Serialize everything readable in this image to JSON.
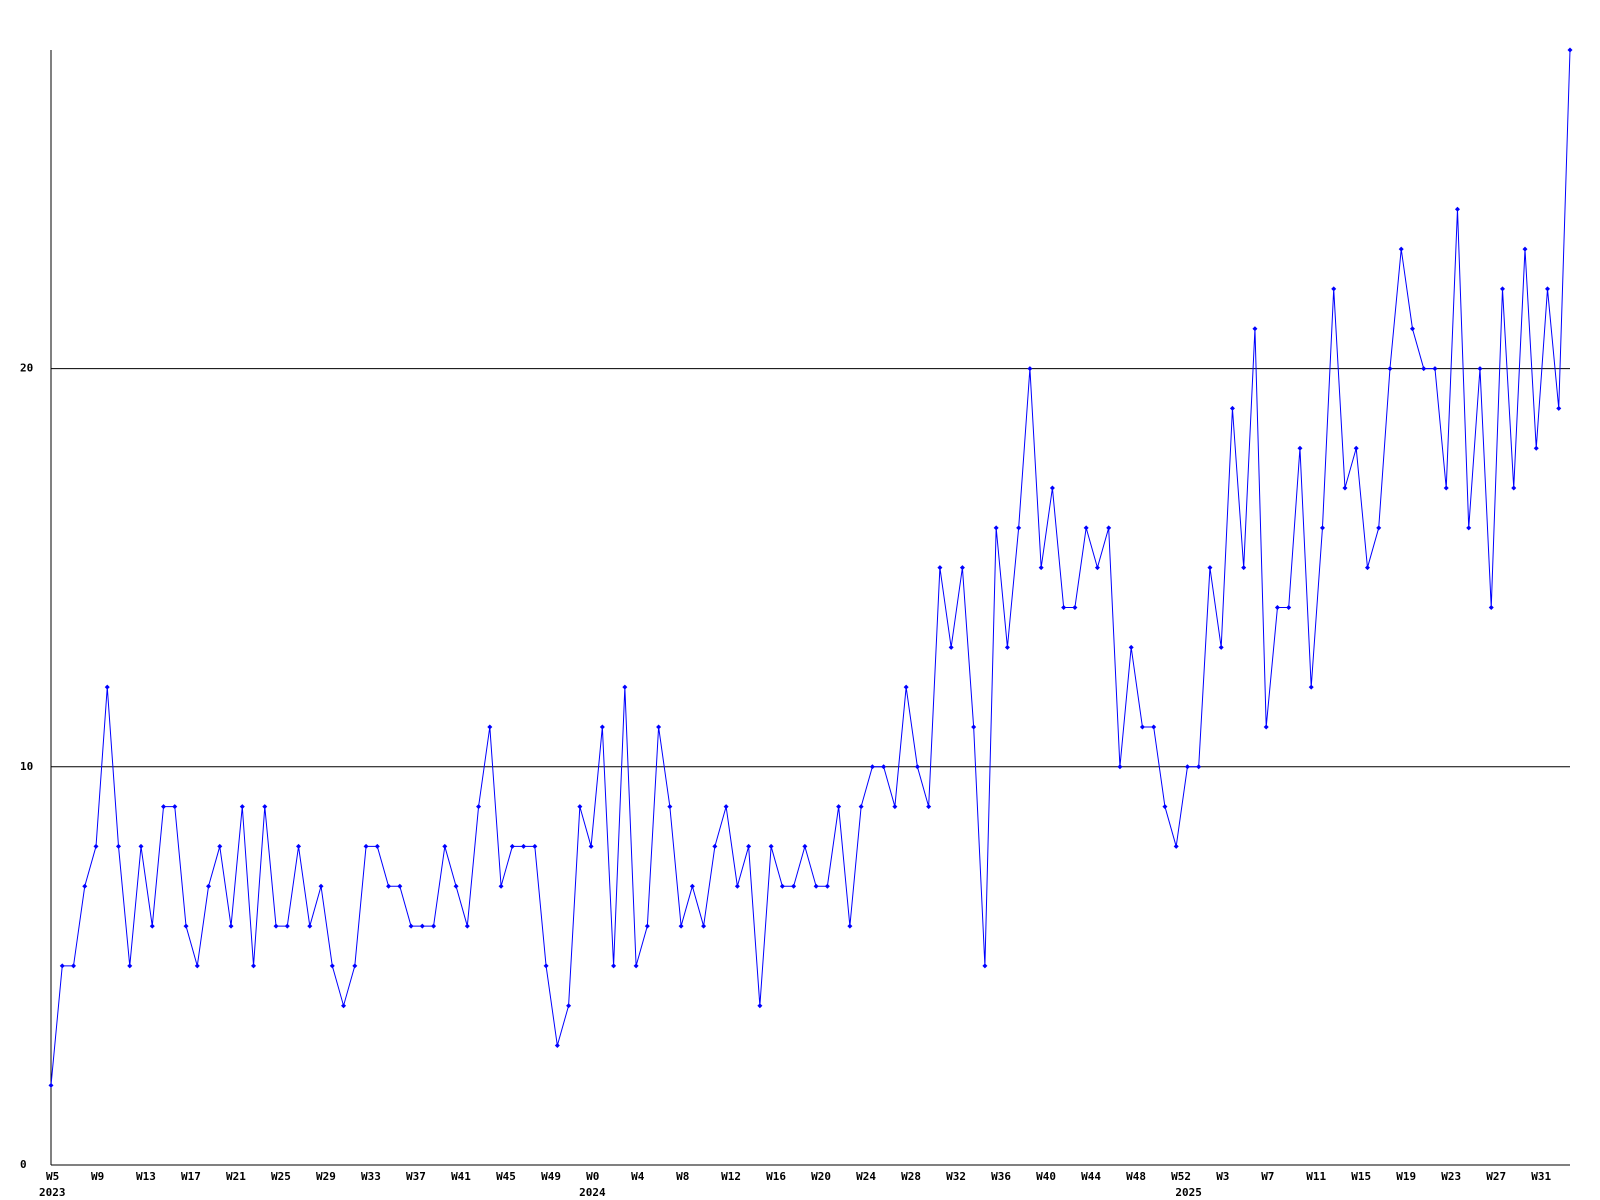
{
  "chart_data": {
    "type": "line",
    "categories": [
      "W5",
      null,
      null,
      null,
      "W9",
      null,
      null,
      null,
      "W13",
      null,
      null,
      null,
      "W17",
      null,
      null,
      null,
      "W21",
      null,
      null,
      null,
      "W25",
      null,
      null,
      null,
      "W29",
      null,
      null,
      null,
      "W33",
      null,
      null,
      null,
      "W37",
      null,
      null,
      null,
      "W41",
      null,
      null,
      null,
      "W45",
      null,
      null,
      null,
      "W49",
      null,
      null,
      null,
      "W0",
      null,
      null,
      null,
      "W4",
      null,
      null,
      null,
      "W8",
      null,
      null,
      null,
      "W12",
      null,
      null,
      null,
      "W16",
      null,
      null,
      null,
      "W20",
      null,
      null,
      null,
      "W24",
      null,
      null,
      null,
      "W28",
      null,
      null,
      null,
      "W32",
      null,
      null,
      null,
      "W36",
      null,
      null,
      null,
      "W40",
      null,
      null,
      null,
      "W44",
      null,
      null,
      null,
      "W48",
      null,
      null,
      null,
      "W52",
      null,
      null,
      null,
      "W3",
      null,
      null,
      null,
      "W7",
      null,
      null,
      null,
      "W11",
      null,
      null,
      null,
      "W15",
      null,
      null,
      null,
      "W19",
      null,
      null,
      null,
      "W23",
      null,
      null,
      null,
      "W27",
      null,
      null,
      null,
      "W31",
      null,
      null,
      null
    ],
    "category_groups": [
      "2023",
      null,
      null,
      null,
      null,
      null,
      null,
      null,
      null,
      null,
      null,
      null,
      null,
      null,
      null,
      null,
      null,
      null,
      null,
      null,
      null,
      null,
      null,
      null,
      null,
      null,
      null,
      null,
      null,
      null,
      null,
      null,
      null,
      null,
      null,
      null,
      null,
      null,
      null,
      null,
      null,
      null,
      null,
      null,
      null,
      null,
      null,
      null,
      "2024",
      null,
      null,
      null,
      null,
      null,
      null,
      null,
      null,
      null,
      null,
      null,
      null,
      null,
      null,
      null,
      null,
      null,
      null,
      null,
      null,
      null,
      null,
      null,
      null,
      null,
      null,
      null,
      null,
      null,
      null,
      null,
      null,
      null,
      null,
      null,
      null,
      null,
      null,
      null,
      null,
      null,
      null,
      null,
      null,
      null,
      null,
      null,
      null,
      null,
      null,
      null,
      null,
      "2025",
      null,
      null,
      null,
      null,
      null,
      null,
      null,
      null,
      null,
      null,
      null,
      null,
      null,
      null,
      null,
      null,
      null,
      null,
      null,
      null,
      null,
      null,
      null,
      null,
      null,
      null,
      null,
      null,
      null,
      null,
      null,
      null,
      null,
      null
    ],
    "series": [
      {
        "color": "#0000ff",
        "values": [
          2,
          5,
          5,
          7,
          8,
          12,
          8,
          5,
          8,
          6,
          9,
          9,
          6,
          5,
          7,
          8,
          6,
          9,
          5,
          9,
          6,
          6,
          8,
          6,
          7,
          5,
          4,
          5,
          8,
          8,
          7,
          7,
          6,
          6,
          6,
          8,
          7,
          6,
          9,
          11,
          7,
          8,
          8,
          8,
          5,
          3,
          4,
          9,
          8,
          11,
          5,
          12,
          5,
          6,
          11,
          9,
          6,
          7,
          6,
          8,
          9,
          7,
          8,
          4,
          8,
          7,
          7,
          8,
          7,
          7,
          9,
          6,
          9,
          10,
          10,
          9,
          12,
          10,
          9,
          15,
          13,
          15,
          11,
          5,
          16,
          13,
          16,
          20,
          15,
          17,
          14,
          14,
          16,
          15,
          16,
          10,
          13,
          11,
          11,
          9,
          8,
          10,
          10,
          15,
          13,
          19,
          15,
          21,
          11,
          14,
          14,
          18,
          12,
          16,
          22,
          17,
          18,
          15,
          16,
          20,
          23,
          21,
          20,
          20,
          17,
          24,
          16,
          20,
          14,
          22,
          17,
          23,
          18,
          22,
          19,
          28
        ]
      }
    ],
    "ylim": [
      0,
      28
    ],
    "yticks": [
      0,
      10,
      20
    ],
    "grid": true
  }
}
